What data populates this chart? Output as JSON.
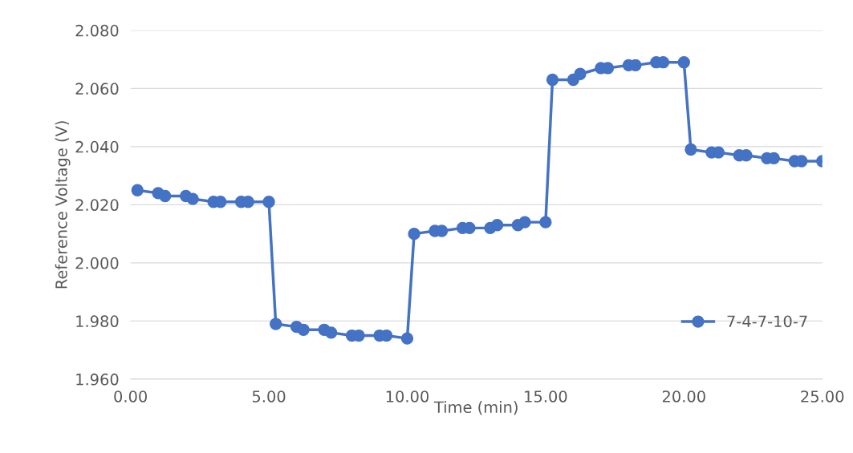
{
  "chart_data": {
    "type": "line",
    "xlabel": "Time (min)",
    "ylabel": "Reference Voltage (V)",
    "xlim": [
      0,
      25
    ],
    "xticks": [
      {
        "value": 0,
        "label": "0.00"
      },
      {
        "value": 5,
        "label": "5.00"
      },
      {
        "value": 10,
        "label": "10.00"
      },
      {
        "value": 15,
        "label": "15.00"
      },
      {
        "value": 20,
        "label": "20.00"
      },
      {
        "value": 25,
        "label": "25.00"
      }
    ],
    "ylim": [
      1.96,
      2.08
    ],
    "yticks": [
      {
        "value": 1.96,
        "label": "1.960"
      },
      {
        "value": 1.98,
        "label": "1.980"
      },
      {
        "value": 2.0,
        "label": "2.000"
      },
      {
        "value": 2.02,
        "label": "2.020"
      },
      {
        "value": 2.04,
        "label": "2.040"
      },
      {
        "value": 2.06,
        "label": "2.060"
      },
      {
        "value": 2.08,
        "label": "2.080"
      }
    ],
    "grid": "y",
    "legend": "lower right",
    "marker": "circle",
    "line_style": "solid",
    "series": [
      {
        "name": "7-4-7-10-7",
        "color": "#4472c4",
        "x": [
          0.25,
          1.0,
          1.25,
          2.0,
          2.25,
          3.0,
          3.25,
          4.0,
          4.25,
          5.0,
          5.25,
          6.0,
          6.25,
          7.0,
          7.25,
          8.0,
          8.25,
          9.0,
          9.25,
          10.0,
          10.25,
          11.0,
          11.25,
          12.0,
          12.25,
          13.0,
          13.25,
          14.0,
          14.25,
          15.0,
          15.25,
          16.0,
          16.25,
          17.0,
          17.25,
          18.0,
          18.25,
          19.0,
          19.25,
          20.0,
          20.25,
          21.0,
          21.25,
          22.0,
          22.25,
          23.0,
          23.25,
          24.0,
          24.25,
          25.0
        ],
        "values": [
          2.025,
          2.024,
          2.023,
          2.023,
          2.022,
          2.021,
          2.021,
          2.021,
          2.021,
          2.021,
          1.979,
          1.978,
          1.977,
          1.977,
          1.976,
          1.975,
          1.975,
          1.975,
          1.975,
          1.974,
          2.01,
          2.011,
          2.011,
          2.012,
          2.012,
          2.012,
          2.013,
          2.013,
          2.014,
          2.014,
          2.063,
          2.063,
          2.065,
          2.067,
          2.067,
          2.068,
          2.068,
          2.069,
          2.069,
          2.069,
          2.039,
          2.038,
          2.038,
          2.037,
          2.037,
          2.036,
          2.036,
          2.035,
          2.035,
          2.035
        ]
      }
    ]
  }
}
